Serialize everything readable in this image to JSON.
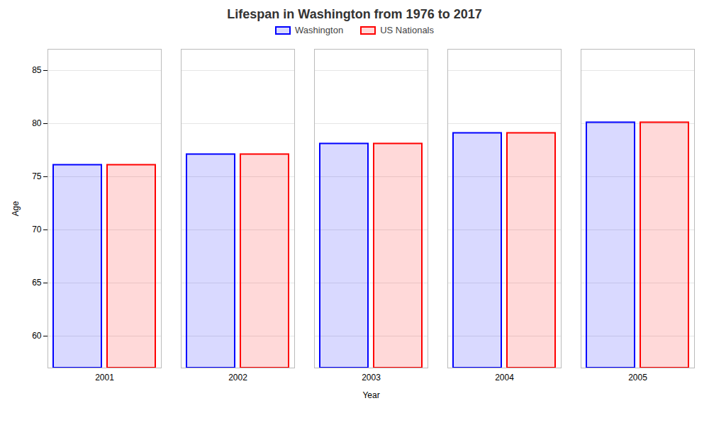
{
  "chart_data": {
    "type": "bar",
    "title": "Lifespan in Washington from 1976 to 2017",
    "xlabel": "Year",
    "ylabel": "Age",
    "categories": [
      "2001",
      "2002",
      "2003",
      "2004",
      "2005"
    ],
    "series": [
      {
        "name": "Washington",
        "color": "#0000ff",
        "values": [
          76.1,
          77.1,
          78.1,
          79.1,
          80.1
        ]
      },
      {
        "name": "US Nationals",
        "color": "#ff0000",
        "values": [
          76.1,
          77.1,
          78.1,
          79.1,
          80.1
        ]
      }
    ],
    "ylim": [
      57,
      87
    ],
    "yticks": [
      60,
      65,
      70,
      75,
      80,
      85
    ],
    "grid": true,
    "legend": "upper center"
  }
}
